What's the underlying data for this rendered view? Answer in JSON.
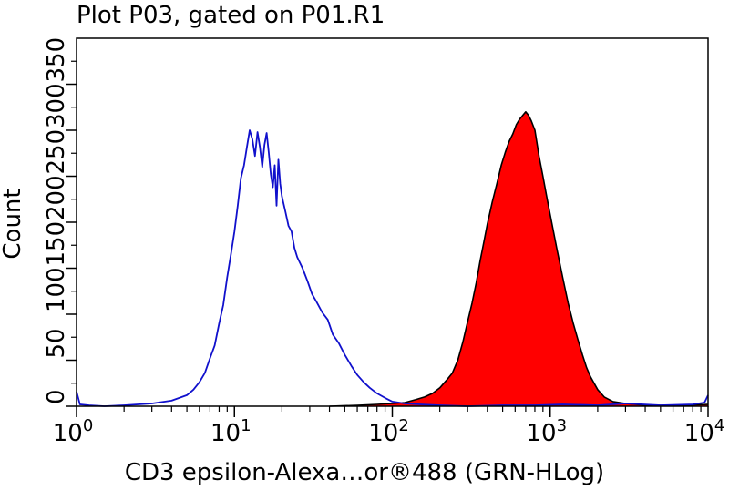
{
  "chart_data": {
    "type": "area",
    "title": "Plot P03, gated on P01.R1",
    "xlabel": "CD3 epsilon-Alexa…or®488 (GRN-HLog)",
    "ylabel": "Count",
    "x_scale": "log",
    "xlim": [
      1,
      10000
    ],
    "ylim": [
      0,
      400
    ],
    "x_ticks": [
      {
        "base": "10",
        "exp": "0"
      },
      {
        "base": "10",
        "exp": "1"
      },
      {
        "base": "10",
        "exp": "2"
      },
      {
        "base": "10",
        "exp": "3"
      },
      {
        "base": "10",
        "exp": "4"
      }
    ],
    "y_ticks": [
      "0",
      "50",
      "100",
      "150",
      "200",
      "250",
      "300",
      "350"
    ],
    "y_tick_values": [
      0,
      50,
      100,
      150,
      200,
      250,
      300,
      350
    ],
    "grid": false,
    "series": [
      {
        "style": "outline",
        "color": "#1010cc",
        "x": [
          1,
          1.05,
          1.2,
          1.5,
          2,
          3,
          4,
          5,
          5.5,
          6,
          6.5,
          7,
          7.5,
          8,
          8.5,
          9,
          9.5,
          10,
          10.5,
          11,
          11.5,
          12,
          12.5,
          13,
          13.5,
          14,
          14.5,
          15,
          15.5,
          16,
          16.5,
          17,
          17.5,
          18,
          18.5,
          19,
          19.5,
          20,
          21,
          22,
          23,
          24,
          25,
          27,
          29,
          31,
          33,
          36,
          39,
          42,
          46,
          50,
          55,
          60,
          66,
          72,
          80,
          90,
          100,
          120,
          150,
          200,
          300,
          500,
          800,
          1200,
          2000,
          3000,
          5000,
          8000,
          9500,
          10000
        ],
        "values": [
          16,
          2,
          1,
          0,
          1,
          3,
          6,
          12,
          18,
          26,
          36,
          52,
          66,
          90,
          110,
          140,
          165,
          190,
          218,
          248,
          262,
          282,
          300,
          290,
          272,
          298,
          282,
          260,
          284,
          297,
          276,
          252,
          238,
          262,
          218,
          268,
          242,
          228,
          212,
          196,
          190,
          172,
          162,
          150,
          136,
          122,
          114,
          102,
          94,
          78,
          68,
          56,
          44,
          34,
          26,
          20,
          14,
          9,
          5,
          3,
          2,
          1,
          0,
          1,
          1,
          2,
          1,
          3,
          1,
          2,
          4,
          12
        ]
      },
      {
        "style": "filled",
        "color": "#ff0000",
        "outline": "#000000",
        "x": [
          40,
          60,
          80,
          100,
          120,
          140,
          160,
          180,
          200,
          220,
          240,
          260,
          280,
          300,
          320,
          340,
          360,
          380,
          400,
          430,
          460,
          490,
          520,
          550,
          580,
          610,
          640,
          670,
          700,
          730,
          760,
          800,
          850,
          900,
          950,
          1000,
          1100,
          1200,
          1300,
          1400,
          1500,
          1600,
          1700,
          1800,
          2000,
          2200,
          2500,
          3000,
          3500,
          4000,
          5000,
          7000,
          10000
        ],
        "values": [
          0,
          1,
          2,
          3,
          4,
          7,
          10,
          14,
          20,
          28,
          36,
          50,
          70,
          92,
          112,
          134,
          158,
          178,
          198,
          222,
          242,
          262,
          276,
          288,
          296,
          306,
          312,
          316,
          320,
          316,
          310,
          300,
          272,
          250,
          228,
          208,
          172,
          140,
          112,
          90,
          72,
          56,
          42,
          32,
          18,
          10,
          5,
          3,
          2,
          1,
          1,
          1,
          2
        ]
      }
    ]
  }
}
